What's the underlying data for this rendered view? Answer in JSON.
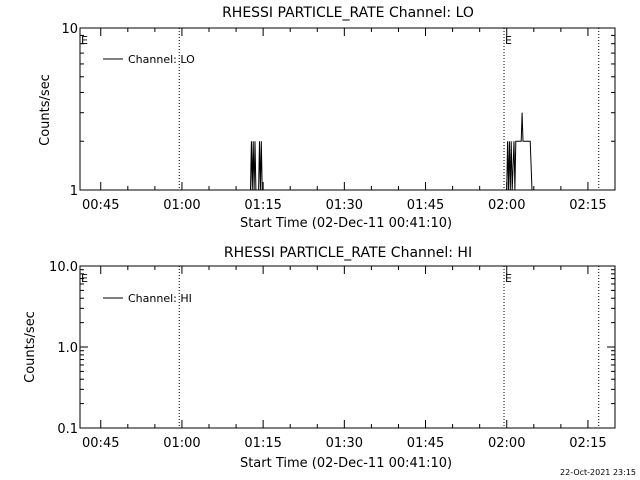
{
  "footer": {
    "timestamp": "22-Oct-2021 23:15"
  },
  "chart_data": [
    {
      "type": "line",
      "title": "RHESSI PARTICLE_RATE Channel: LO",
      "xlabel": "Start Time (02-Dec-11 00:41:10)",
      "ylabel": "Counts/sec",
      "y_scale": "log",
      "ylim": [
        1,
        10
      ],
      "xlim": [
        "00:41:10",
        "02:20:00"
      ],
      "x_ticks": [
        "00:45",
        "01:00",
        "01:15",
        "01:30",
        "01:45",
        "02:00",
        "02:15"
      ],
      "y_ticks": [
        "1",
        "10"
      ],
      "legend": {
        "label": "Channel: LO",
        "position": "top-left"
      },
      "markers": [
        {
          "time": "00:41:10",
          "label": "E"
        },
        {
          "time": "00:59:30",
          "label": ""
        },
        {
          "time": "01:59:30",
          "label": "E"
        },
        {
          "time": "02:17:00",
          "label": ""
        }
      ],
      "series": [
        {
          "name": "Channel: LO",
          "points": [
            [
              "01:12:40",
              1
            ],
            [
              "01:12:50",
              2
            ],
            [
              "01:13:00",
              1
            ],
            [
              "01:13:10",
              2
            ],
            [
              "01:13:20",
              1
            ],
            [
              "01:13:30",
              2
            ],
            [
              "01:13:40",
              1
            ],
            [
              "01:14:10",
              1
            ],
            [
              "01:14:20",
              2
            ],
            [
              "01:14:30",
              1
            ],
            [
              "01:14:40",
              2
            ],
            [
              "01:14:50",
              1
            ],
            [
              "02:00:00",
              1
            ],
            [
              "02:00:10",
              2
            ],
            [
              "02:00:20",
              1
            ],
            [
              "02:00:30",
              2
            ],
            [
              "02:00:40",
              1
            ],
            [
              "02:00:50",
              2
            ],
            [
              "02:01:00",
              1
            ],
            [
              "02:01:20",
              2
            ],
            [
              "02:01:30",
              1
            ],
            [
              "02:01:40",
              2
            ],
            [
              "02:02:00",
              2
            ],
            [
              "02:02:40",
              2
            ],
            [
              "02:02:50",
              3
            ],
            [
              "02:03:00",
              2
            ],
            [
              "02:04:20",
              2
            ],
            [
              "02:04:40",
              1
            ]
          ]
        }
      ]
    },
    {
      "type": "line",
      "title": "RHESSI PARTICLE_RATE Channel: HI",
      "xlabel": "Start Time (02-Dec-11 00:41:10)",
      "ylabel": "Counts/sec",
      "y_scale": "log",
      "ylim": [
        0.1,
        10
      ],
      "xlim": [
        "00:41:10",
        "02:20:00"
      ],
      "x_ticks": [
        "00:45",
        "01:00",
        "01:15",
        "01:30",
        "01:45",
        "02:00",
        "02:15"
      ],
      "y_ticks": [
        "0.1",
        "1.0",
        "10.0"
      ],
      "legend": {
        "label": "Channel: HI",
        "position": "top-left"
      },
      "markers": [
        {
          "time": "00:41:10",
          "label": "E"
        },
        {
          "time": "00:59:30",
          "label": ""
        },
        {
          "time": "01:59:30",
          "label": "E"
        },
        {
          "time": "02:17:00",
          "label": ""
        }
      ],
      "series": [
        {
          "name": "Channel: HI",
          "points": []
        }
      ]
    }
  ]
}
